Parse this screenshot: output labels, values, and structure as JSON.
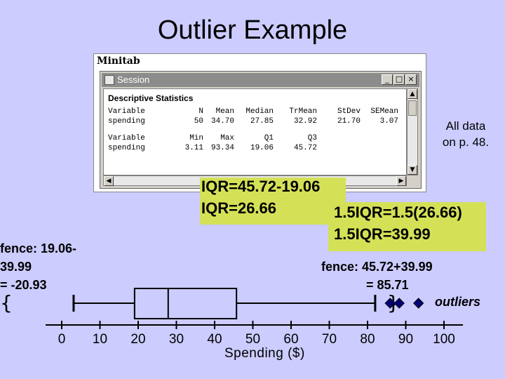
{
  "slide": {
    "title": "Outlier Example"
  },
  "minitab": {
    "app_title": "Minitab",
    "session_title": "Session",
    "heading": "Descriptive Statistics",
    "header1": [
      "Variable",
      "N",
      "Mean",
      "Median",
      "TrMean",
      "StDev",
      "SEMean"
    ],
    "row1": [
      "spending",
      "50",
      "34.70",
      "27.85",
      "32.92",
      "21.70",
      "3.07"
    ],
    "header2": [
      "Variable",
      "Min",
      "Max",
      "Q1",
      "Q3"
    ],
    "row2": [
      "spending",
      "3.11",
      "93.34",
      "19.06",
      "45.72"
    ]
  },
  "notes": {
    "all_data": "All data\non p. 48.",
    "iqr_line1": "IQR=45.72-19.06",
    "iqr_line2": "IQR=26.66",
    "iqr15_line1": "1.5IQR=1.5(26.66)",
    "iqr15_line2": "1.5IQR=39.99",
    "lower_fence_1": "fence: 19.06-",
    "lower_fence_2": "39.99",
    "lower_fence_3": "= -20.93",
    "upper_fence_1": "fence: 45.72+39.99",
    "upper_fence_2": "= 85.71",
    "lower_brace": "{",
    "upper_brace": "}",
    "outliers": "outliers"
  },
  "plot": {
    "axis_label": "Spending ($)",
    "ticks": [
      "0",
      "10",
      "20",
      "30",
      "40",
      "50",
      "60",
      "70",
      "80",
      "90",
      "100"
    ],
    "min": 3.11,
    "q1": 19.06,
    "median": 27.85,
    "q3": 45.72,
    "whisker_high": 82,
    "outliers": [
      85.9,
      88.3,
      93.34
    ],
    "axis_range": [
      0,
      100
    ]
  },
  "colors": {
    "background": "#ccccff",
    "highlight": "#d4e157",
    "outlier_marker": "#00007a"
  }
}
